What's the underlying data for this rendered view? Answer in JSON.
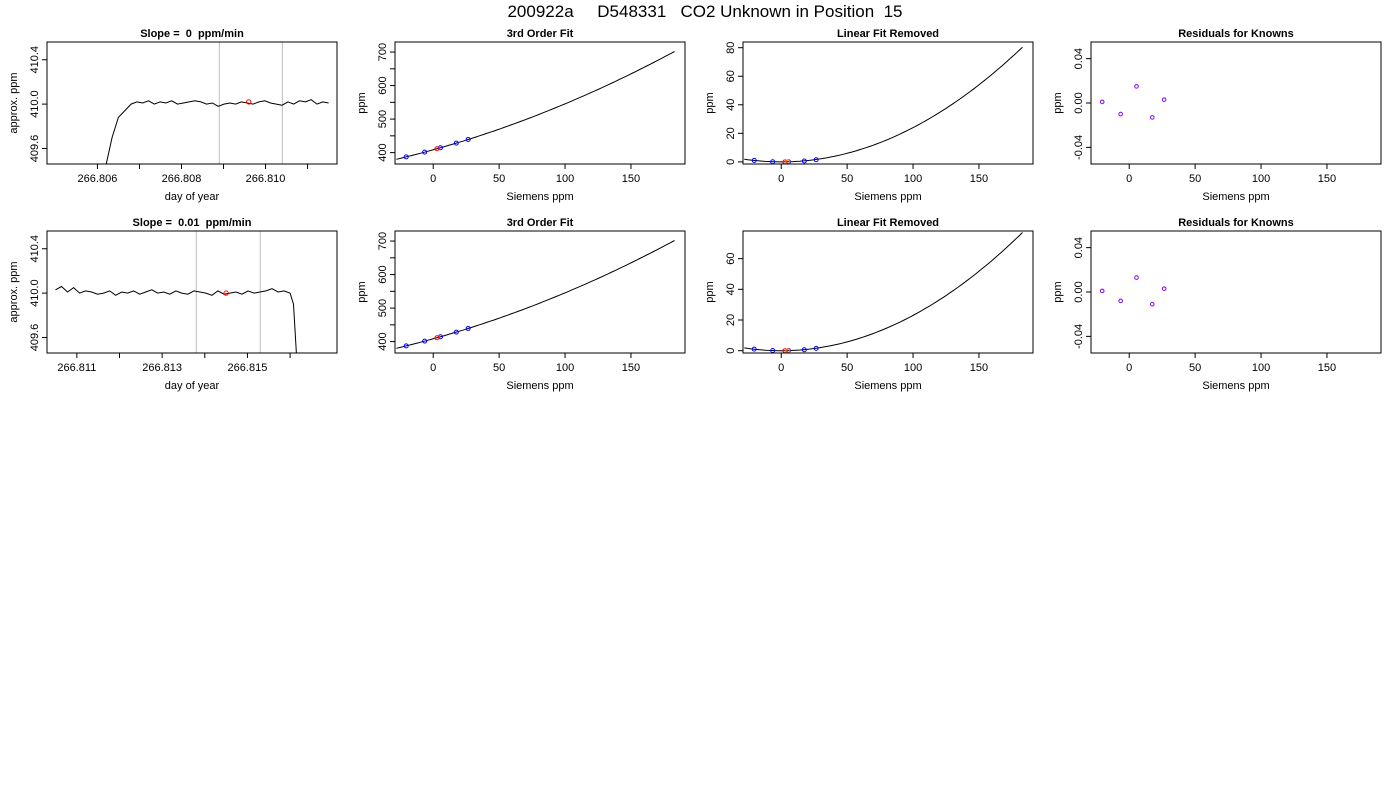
{
  "figure_title": "200922a     D548331   CO2 Unknown in Position  15",
  "colors": {
    "line": "#000000",
    "knowns": "#0000ff",
    "unknown": "#ff0000",
    "residuals": "#8000ff",
    "vertical_guides": "#bebebe"
  },
  "chart_data": [
    {
      "type": "line",
      "title": "Slope =  0  ppm/min",
      "xlabel": "day of year",
      "ylabel": "approx. ppm",
      "xlim": [
        266.8048,
        266.8117
      ],
      "ylim": [
        409.46,
        410.56
      ],
      "xticks": [
        266.806,
        266.807,
        266.808,
        266.809,
        266.81,
        266.811
      ],
      "xtick_labels": [
        "266.806",
        "",
        "266.808",
        "",
        "266.810",
        ""
      ],
      "yticks": [
        409.6,
        410.0,
        410.4
      ],
      "ytick_labels": [
        "409.6",
        "410.0",
        "410.4"
      ],
      "vlines": [
        266.8089,
        266.8104
      ],
      "marker": {
        "x": 266.8096,
        "y": 410.02
      },
      "trace_x_range": [
        266.8062,
        266.8115
      ],
      "rise": {
        "from_x": 266.8062,
        "plateau_x": 266.8068,
        "plateau_y": 410.0
      },
      "series_y": [
        409.2,
        409.6,
        409.85,
        409.95,
        409.98,
        410.0,
        410.02,
        410.01,
        410.03,
        410.0,
        410.02,
        410.01,
        410.03,
        410.0,
        410.01,
        410.02,
        410.03,
        410.02,
        410.0,
        410.01,
        409.98,
        410.0,
        410.01,
        410.0,
        410.02,
        410.01,
        410.0,
        410.02,
        410.03,
        410.01,
        410.0,
        409.99,
        410.02,
        410.0,
        410.03,
        410.02,
        410.04,
        410.0,
        410.02,
        410.01
      ]
    },
    {
      "type": "line",
      "title": "3rd Order Fit",
      "xlabel": "Siemens ppm",
      "ylabel": "ppm",
      "xlim": [
        -29,
        191
      ],
      "ylim": [
        366,
        730
      ],
      "xticks": [
        0,
        50,
        100,
        150
      ],
      "xtick_labels": [
        "0",
        "50",
        "100",
        "150"
      ],
      "yticks": [
        400,
        450,
        500,
        550,
        600,
        650,
        700
      ],
      "ytick_labels": [
        "400",
        "",
        "500",
        "",
        "600",
        "",
        "700"
      ],
      "curve_x_range": [
        -28,
        183
      ],
      "curve_poly": [
        408.4,
        1.09,
        0.0028
      ],
      "knowns_x": [
        -20.5,
        -6.5,
        5.5,
        17.5,
        26.5
      ],
      "unknown_x": [
        2.8
      ]
    },
    {
      "type": "line",
      "title": "Linear Fit Removed",
      "xlabel": "Siemens ppm",
      "ylabel": "ppm",
      "xlim": [
        -29,
        191
      ],
      "ylim": [
        -1.5,
        84
      ],
      "xticks": [
        0,
        50,
        100,
        150
      ],
      "xtick_labels": [
        "0",
        "50",
        "100",
        "150"
      ],
      "yticks": [
        0,
        20,
        40,
        60,
        80
      ],
      "ytick_labels": [
        "0",
        "20",
        "40",
        "60",
        "80"
      ],
      "curve_x_range": [
        -28,
        183
      ],
      "curve_poly": [
        0,
        0,
        0.0024
      ],
      "knowns_x": [
        -20.5,
        -6.5,
        5.5,
        17.5,
        26.5
      ],
      "knowns_y": [
        1.0,
        0.1,
        0.1,
        0.6,
        1.5
      ],
      "unknown_x": [
        2.8
      ],
      "unknown_y": [
        0.0
      ]
    },
    {
      "type": "scatter",
      "title": "Residuals for Knowns",
      "xlabel": "Siemens ppm",
      "ylabel": "ppm",
      "xlim": [
        -29,
        191
      ],
      "ylim": [
        -0.055,
        0.055
      ],
      "xticks": [
        0,
        50,
        100,
        150
      ],
      "xtick_labels": [
        "0",
        "50",
        "100",
        "150"
      ],
      "yticks": [
        -0.04,
        0.0,
        0.04
      ],
      "ytick_labels": [
        "-0.04",
        "0.00",
        "0.04"
      ],
      "x": [
        -20.5,
        -6.5,
        5.5,
        17.5,
        26.5
      ],
      "y": [
        0.001,
        -0.01,
        0.015,
        -0.013,
        0.003
      ]
    },
    {
      "type": "line",
      "title": "Slope =  0.01  ppm/min",
      "xlabel": "day of year",
      "ylabel": "approx. ppm",
      "xlim": [
        266.8103,
        266.8171
      ],
      "ylim": [
        409.46,
        410.56
      ],
      "xticks": [
        266.811,
        266.812,
        266.813,
        266.814,
        266.815,
        266.816
      ],
      "xtick_labels": [
        "266.811",
        "",
        "266.813",
        "",
        "266.815",
        ""
      ],
      "yticks": [
        409.6,
        410.0,
        410.4
      ],
      "ytick_labels": [
        "409.6",
        "410.0",
        "410.4"
      ],
      "vlines": [
        266.8138,
        266.8153
      ],
      "marker": {
        "x": 266.8145,
        "y": 410.0
      },
      "trace_x_range": [
        266.8105,
        266.8162
      ],
      "drop": {
        "at_x": 266.816,
        "to_y": 409.2
      },
      "series_y": [
        410.03,
        410.06,
        410.01,
        410.05,
        410.0,
        410.02,
        410.01,
        409.99,
        410.0,
        410.02,
        409.98,
        410.01,
        410.0,
        410.02,
        409.99,
        410.01,
        410.03,
        410.0,
        410.01,
        409.99,
        410.02,
        410.0,
        409.99,
        410.02,
        410.01,
        410.0,
        409.98,
        410.02,
        409.99,
        410.0,
        410.01,
        409.99,
        410.02,
        410.0,
        410.01,
        410.02,
        410.04,
        410.01,
        410.02,
        410.0
      ]
    },
    {
      "type": "line",
      "title": "3rd Order Fit",
      "xlabel": "Siemens ppm",
      "ylabel": "ppm",
      "xlim": [
        -29,
        191
      ],
      "ylim": [
        366,
        730
      ],
      "xticks": [
        0,
        50,
        100,
        150
      ],
      "xtick_labels": [
        "0",
        "50",
        "100",
        "150"
      ],
      "yticks": [
        400,
        450,
        500,
        550,
        600,
        650,
        700
      ],
      "ytick_labels": [
        "400",
        "",
        "500",
        "",
        "600",
        "",
        "700"
      ],
      "curve_x_range": [
        -28,
        183
      ],
      "curve_poly": [
        408.4,
        1.09,
        0.0028
      ],
      "knowns_x": [
        -20.5,
        -6.5,
        5.5,
        17.5,
        26.5
      ],
      "unknown_x": [
        2.8
      ]
    },
    {
      "type": "line",
      "title": "Linear Fit Removed",
      "xlabel": "Siemens ppm",
      "ylabel": "ppm",
      "xlim": [
        -29,
        191
      ],
      "ylim": [
        -1.5,
        78
      ],
      "xticks": [
        0,
        50,
        100,
        150
      ],
      "xtick_labels": [
        "0",
        "50",
        "100",
        "150"
      ],
      "yticks": [
        0,
        20,
        40,
        60
      ],
      "ytick_labels": [
        "0",
        "20",
        "40",
        "60"
      ],
      "curve_x_range": [
        -28,
        183
      ],
      "curve_poly": [
        0,
        0,
        0.0023
      ],
      "knowns_x": [
        -20.5,
        -6.5,
        5.5,
        17.5,
        26.5
      ],
      "knowns_y": [
        1.0,
        0.1,
        0.1,
        0.6,
        1.5
      ],
      "unknown_x": [
        2.8
      ],
      "unknown_y": [
        0.0
      ]
    },
    {
      "type": "scatter",
      "title": "Residuals for Knowns",
      "xlabel": "Siemens ppm",
      "ylabel": "ppm",
      "xlim": [
        -29,
        191
      ],
      "ylim": [
        -0.055,
        0.055
      ],
      "xticks": [
        0,
        50,
        100,
        150
      ],
      "xtick_labels": [
        "0",
        "50",
        "100",
        "150"
      ],
      "yticks": [
        -0.04,
        0.0,
        0.04
      ],
      "ytick_labels": [
        "-0.04",
        "0.00",
        "0.04"
      ],
      "x": [
        -20.5,
        -6.5,
        5.5,
        17.5,
        26.5
      ],
      "y": [
        0.001,
        -0.008,
        0.013,
        -0.011,
        0.003
      ]
    }
  ]
}
